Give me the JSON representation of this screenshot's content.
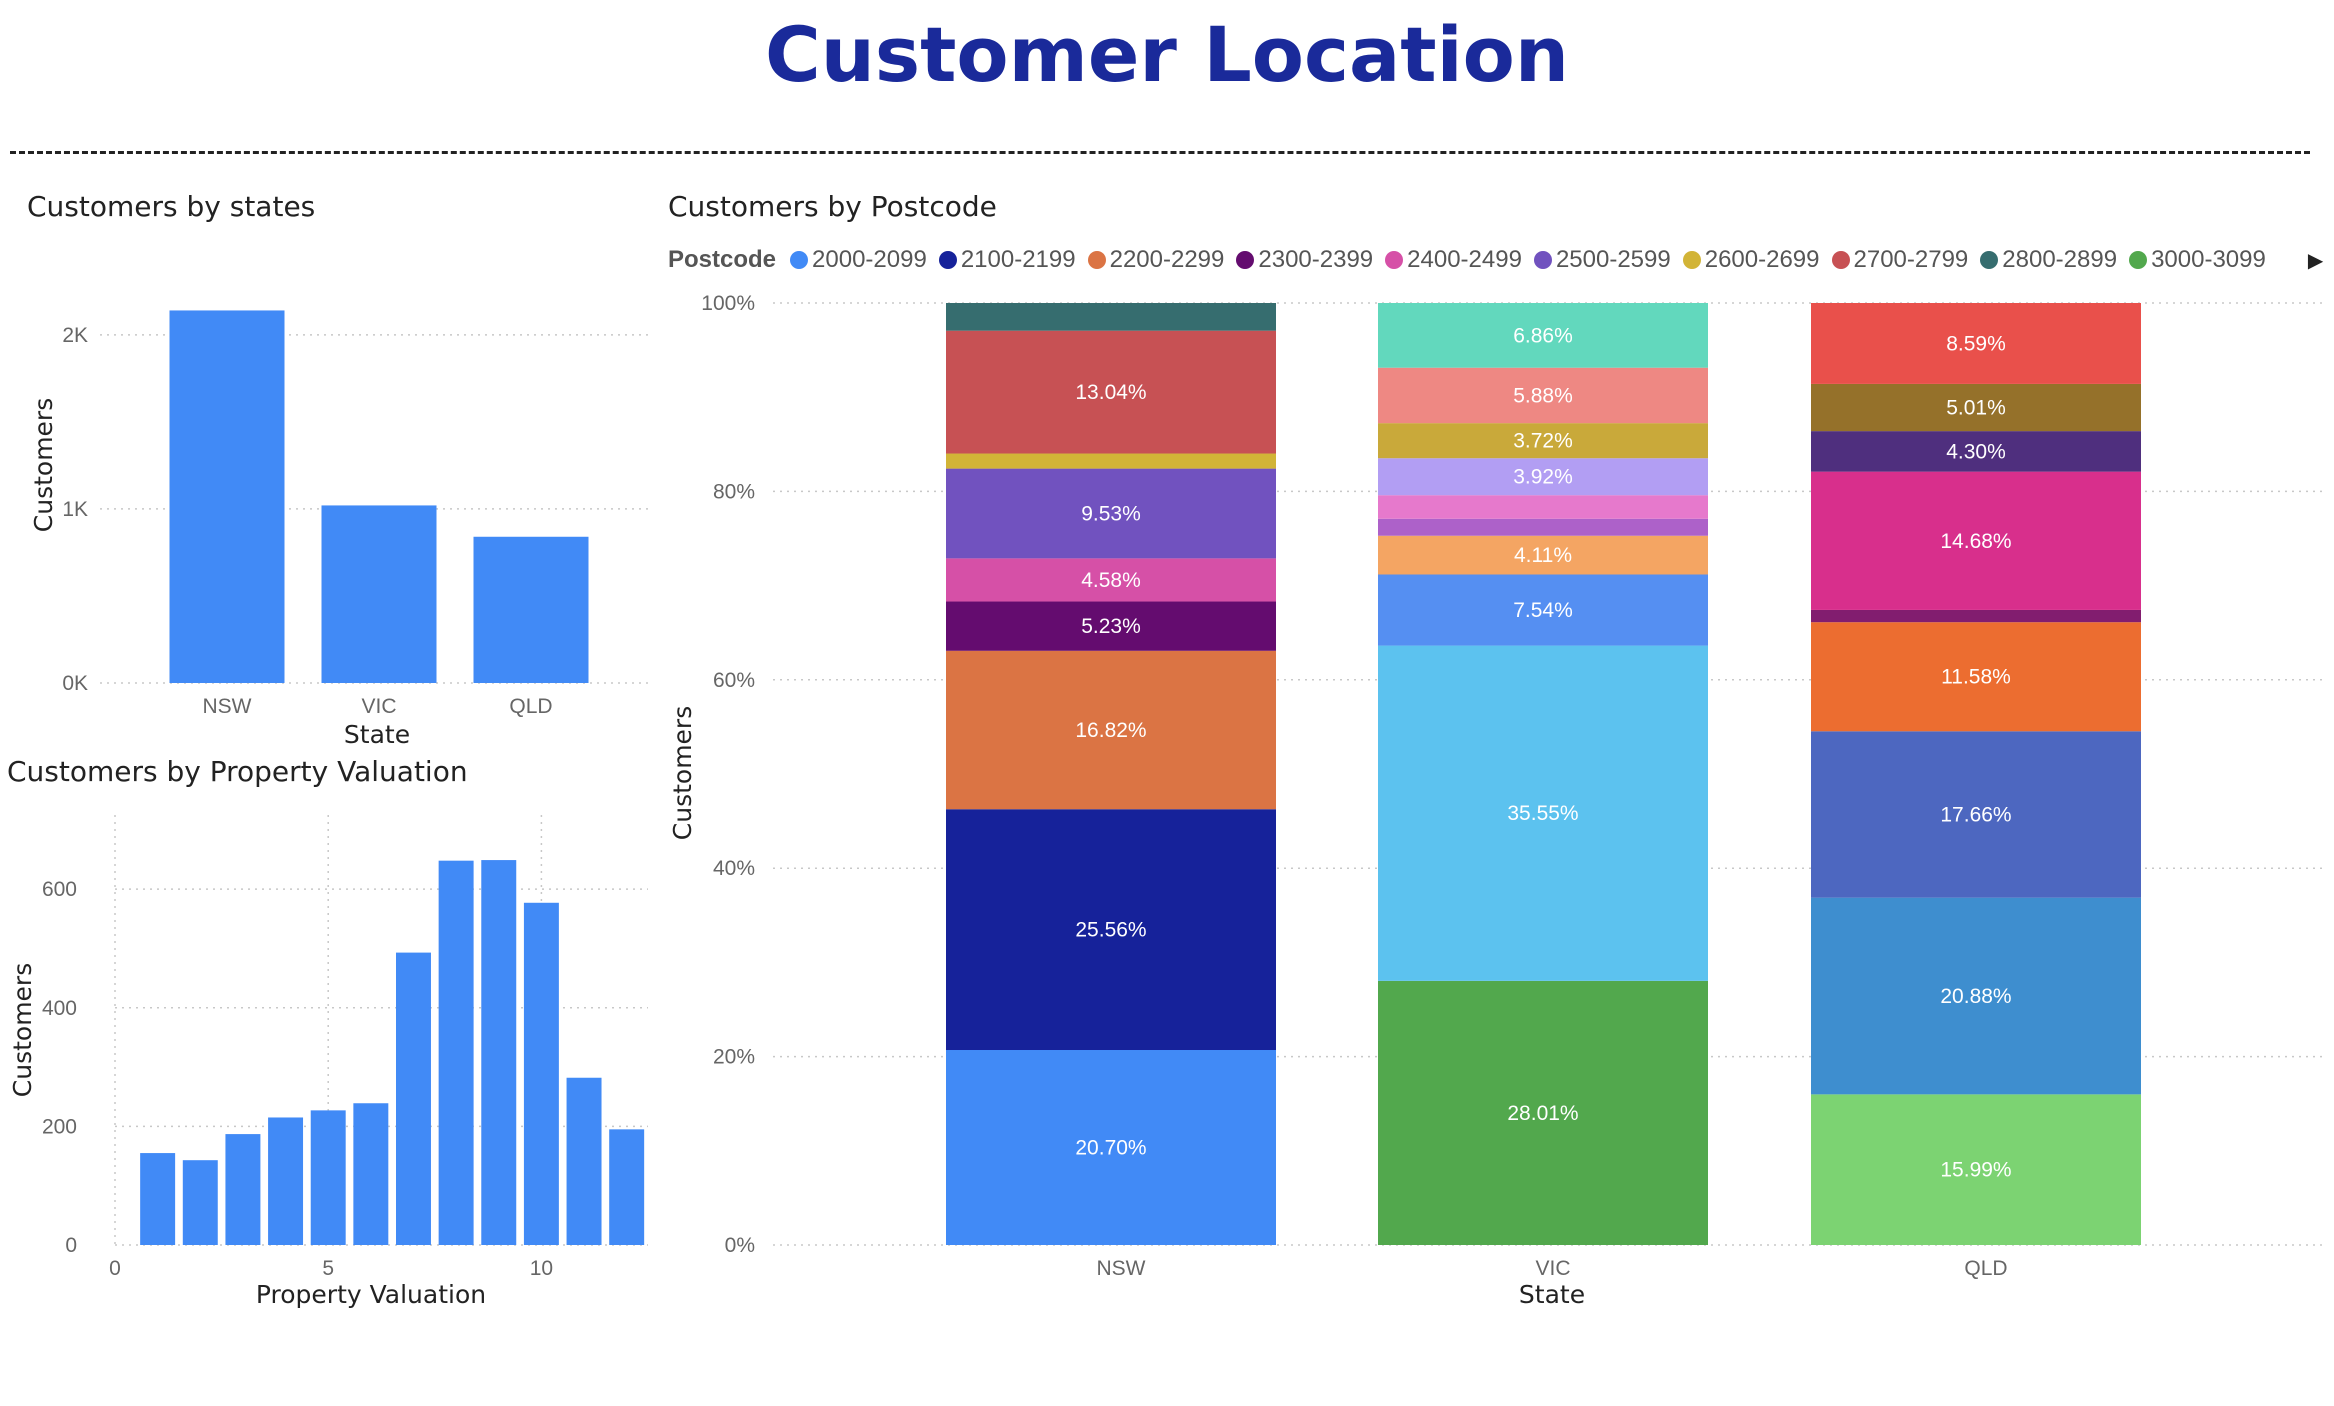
{
  "page": {
    "title": "Customer Location"
  },
  "legend": {
    "title": "Postcode",
    "items": [
      {
        "label": "2000-2099",
        "color": "#418af6"
      },
      {
        "label": "2100-2199",
        "color": "#16229a"
      },
      {
        "label": "2200-2299",
        "color": "#db7444"
      },
      {
        "label": "2300-2399",
        "color": "#640c6f"
      },
      {
        "label": "2400-2499",
        "color": "#d650a7"
      },
      {
        "label": "2500-2599",
        "color": "#7152bf"
      },
      {
        "label": "2600-2699",
        "color": "#d2b437"
      },
      {
        "label": "2700-2799",
        "color": "#c75154"
      },
      {
        "label": "2800-2899",
        "color": "#366d6f"
      },
      {
        "label": "3000-3099",
        "color": "#52a84d"
      }
    ],
    "next_icon": "triangle-right-icon"
  },
  "chart_data": [
    {
      "type": "bar",
      "title": "Customers by states",
      "xlabel": "State",
      "ylabel": "Customers",
      "categories": [
        "NSW",
        "VIC",
        "QLD"
      ],
      "values": [
        2140,
        1020,
        840
      ],
      "ylim": [
        0,
        2200
      ],
      "yticks": [
        0,
        1000,
        2000
      ],
      "ytick_labels": [
        "0K",
        "1K",
        "2K"
      ],
      "color": "#418af6",
      "grid": true
    },
    {
      "type": "bar",
      "title": "Customers by Property Valuation",
      "xlabel": "Property Valuation",
      "ylabel": "Customers",
      "x": [
        1,
        2,
        3,
        4,
        5,
        6,
        7,
        8,
        9,
        10,
        11,
        12
      ],
      "values": [
        155,
        143,
        187,
        215,
        227,
        239,
        493,
        648,
        649,
        577,
        282,
        195
      ],
      "xlim": [
        0,
        12.5
      ],
      "xticks": [
        0,
        5,
        10
      ],
      "ylim": [
        0,
        640
      ],
      "yticks": [
        0,
        200,
        400,
        600
      ],
      "color": "#418af6",
      "grid": true
    },
    {
      "type": "bar",
      "stacked": "100%",
      "title": "Customers by Postcode",
      "xlabel": "State",
      "ylabel": "Customers",
      "legend_title": "Postcode",
      "categories": [
        "NSW",
        "VIC",
        "QLD"
      ],
      "yticks": [
        "0%",
        "20%",
        "40%",
        "60%",
        "80%",
        "100%"
      ],
      "stacks": [
        {
          "category": "NSW",
          "segments": [
            {
              "value": 20.7,
              "label": "20.70%",
              "color": "#418af6"
            },
            {
              "value": 25.56,
              "label": "25.56%",
              "color": "#16229a"
            },
            {
              "value": 16.82,
              "label": "16.82%",
              "color": "#db7444"
            },
            {
              "value": 5.23,
              "label": "5.23%",
              "color": "#640c6f"
            },
            {
              "value": 4.58,
              "label": "4.58%",
              "color": "#d650a7"
            },
            {
              "value": 9.53,
              "label": "9.53%",
              "color": "#7152bf"
            },
            {
              "value": 1.6,
              "label": "",
              "color": "#d2b437"
            },
            {
              "value": 13.04,
              "label": "13.04%",
              "color": "#c75154"
            },
            {
              "value": 2.94,
              "label": "",
              "color": "#366d6f"
            }
          ]
        },
        {
          "category": "VIC",
          "segments": [
            {
              "value": 28.01,
              "label": "28.01%",
              "color": "#52a84d"
            },
            {
              "value": 35.55,
              "label": "35.55%",
              "color": "#5cc2ef"
            },
            {
              "value": 7.54,
              "label": "7.54%",
              "color": "#558ff2"
            },
            {
              "value": 4.11,
              "label": "4.11%",
              "color": "#f4a563"
            },
            {
              "value": 1.8,
              "label": "",
              "color": "#ad61c9"
            },
            {
              "value": 2.5,
              "label": "",
              "color": "#e679cc"
            },
            {
              "value": 3.92,
              "label": "3.92%",
              "color": "#b29ef3"
            },
            {
              "value": 3.72,
              "label": "3.72%",
              "color": "#c9a93a"
            },
            {
              "value": 5.88,
              "label": "5.88%",
              "color": "#ee8883"
            },
            {
              "value": 6.86,
              "label": "6.86%",
              "color": "#62d8bd"
            }
          ]
        },
        {
          "category": "QLD",
          "segments": [
            {
              "value": 15.99,
              "label": "15.99%",
              "color": "#7cd372"
            },
            {
              "value": 20.88,
              "label": "20.88%",
              "color": "#3e8ecf"
            },
            {
              "value": 17.66,
              "label": "17.66%",
              "color": "#4d67c0"
            },
            {
              "value": 11.58,
              "label": "11.58%",
              "color": "#ec6d30"
            },
            {
              "value": 1.3,
              "label": "",
              "color": "#821d6f"
            },
            {
              "value": 14.68,
              "label": "14.68%",
              "color": "#d82f8c"
            },
            {
              "value": 4.3,
              "label": "4.30%",
              "color": "#4f2f7e"
            },
            {
              "value": 5.01,
              "label": "5.01%",
              "color": "#95712a"
            },
            {
              "value": 8.59,
              "label": "8.59%",
              "color": "#e9504b"
            }
          ]
        }
      ]
    }
  ]
}
